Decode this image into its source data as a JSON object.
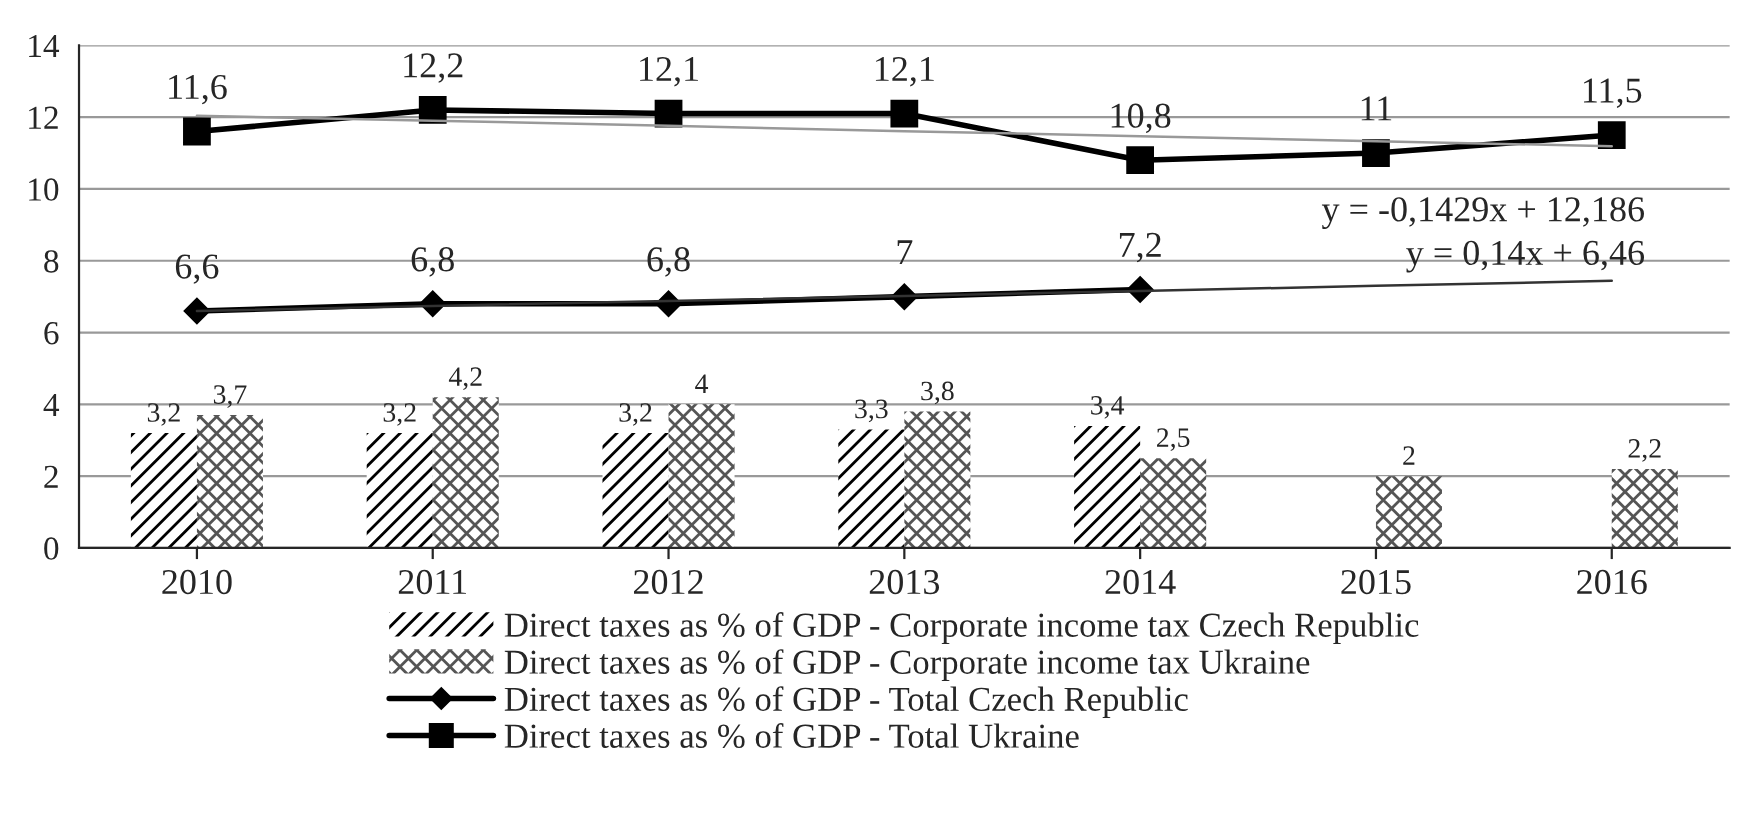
{
  "chart_data": {
    "type": "bar",
    "categories": [
      "2010",
      "2011",
      "2012",
      "2013",
      "2014",
      "2015",
      "2016"
    ],
    "series": [
      {
        "name": "Direct taxes as % of GDP - Corporate income tax Czech Republic",
        "color": "#000000",
        "values": [
          3.2,
          3.2,
          3.2,
          3.3,
          3.4,
          null,
          null
        ],
        "value_labels": [
          "3,2",
          "3,2",
          "3,2",
          "3,3",
          "3,4",
          null,
          null
        ]
      },
      {
        "name": "Direct taxes as % of GDP - Corporate income tax Ukraine",
        "color": "#555555",
        "values": [
          3.7,
          4.2,
          4.0,
          3.8,
          2.5,
          2.0,
          2.2
        ],
        "value_labels": [
          "3,7",
          "4,2",
          "4",
          "3,8",
          "2,5",
          "2",
          "2,2"
        ]
      },
      {
        "name": "Direct taxes as % of GDP - Total Czech Republic",
        "type": "line",
        "marker": "diamond",
        "color": "#000000",
        "values": [
          6.6,
          6.8,
          6.8,
          7.0,
          7.2,
          null,
          null
        ],
        "value_labels": [
          "6,6",
          "6,8",
          "6,8",
          "7",
          "7,2",
          null,
          null
        ]
      },
      {
        "name": "Direct taxes as % of GDP - Total Ukraine",
        "type": "line",
        "marker": "square",
        "color": "#000000",
        "values": [
          11.6,
          12.2,
          12.1,
          12.1,
          10.8,
          11.0,
          11.5
        ],
        "value_labels": [
          "11,6",
          "12,2",
          "12,1",
          "12,1",
          "10,8",
          "11",
          "11,5"
        ]
      },
      {
        "type": "line",
        "marker": "none",
        "color": "#999999",
        "values": [
          12.04,
          11.9,
          11.76,
          11.61,
          11.47,
          11.33,
          11.19
        ]
      },
      {
        "type": "line",
        "marker": "none",
        "color": "#333333",
        "values": [
          6.6,
          6.74,
          6.88,
          7.02,
          7.16,
          7.3,
          7.44
        ]
      }
    ],
    "ylim": [
      0,
      14
    ],
    "yticks": [
      0,
      2,
      4,
      6,
      8,
      10,
      12,
      14
    ],
    "grid": "y",
    "legend": "bottom",
    "annotations": [
      {
        "text": "y = -0,1429x + 12,186",
        "x": "2016",
        "y": 11.19
      },
      {
        "text": "y = 0,14x + 6,46",
        "x": "2016",
        "y": 7.44
      }
    ]
  }
}
